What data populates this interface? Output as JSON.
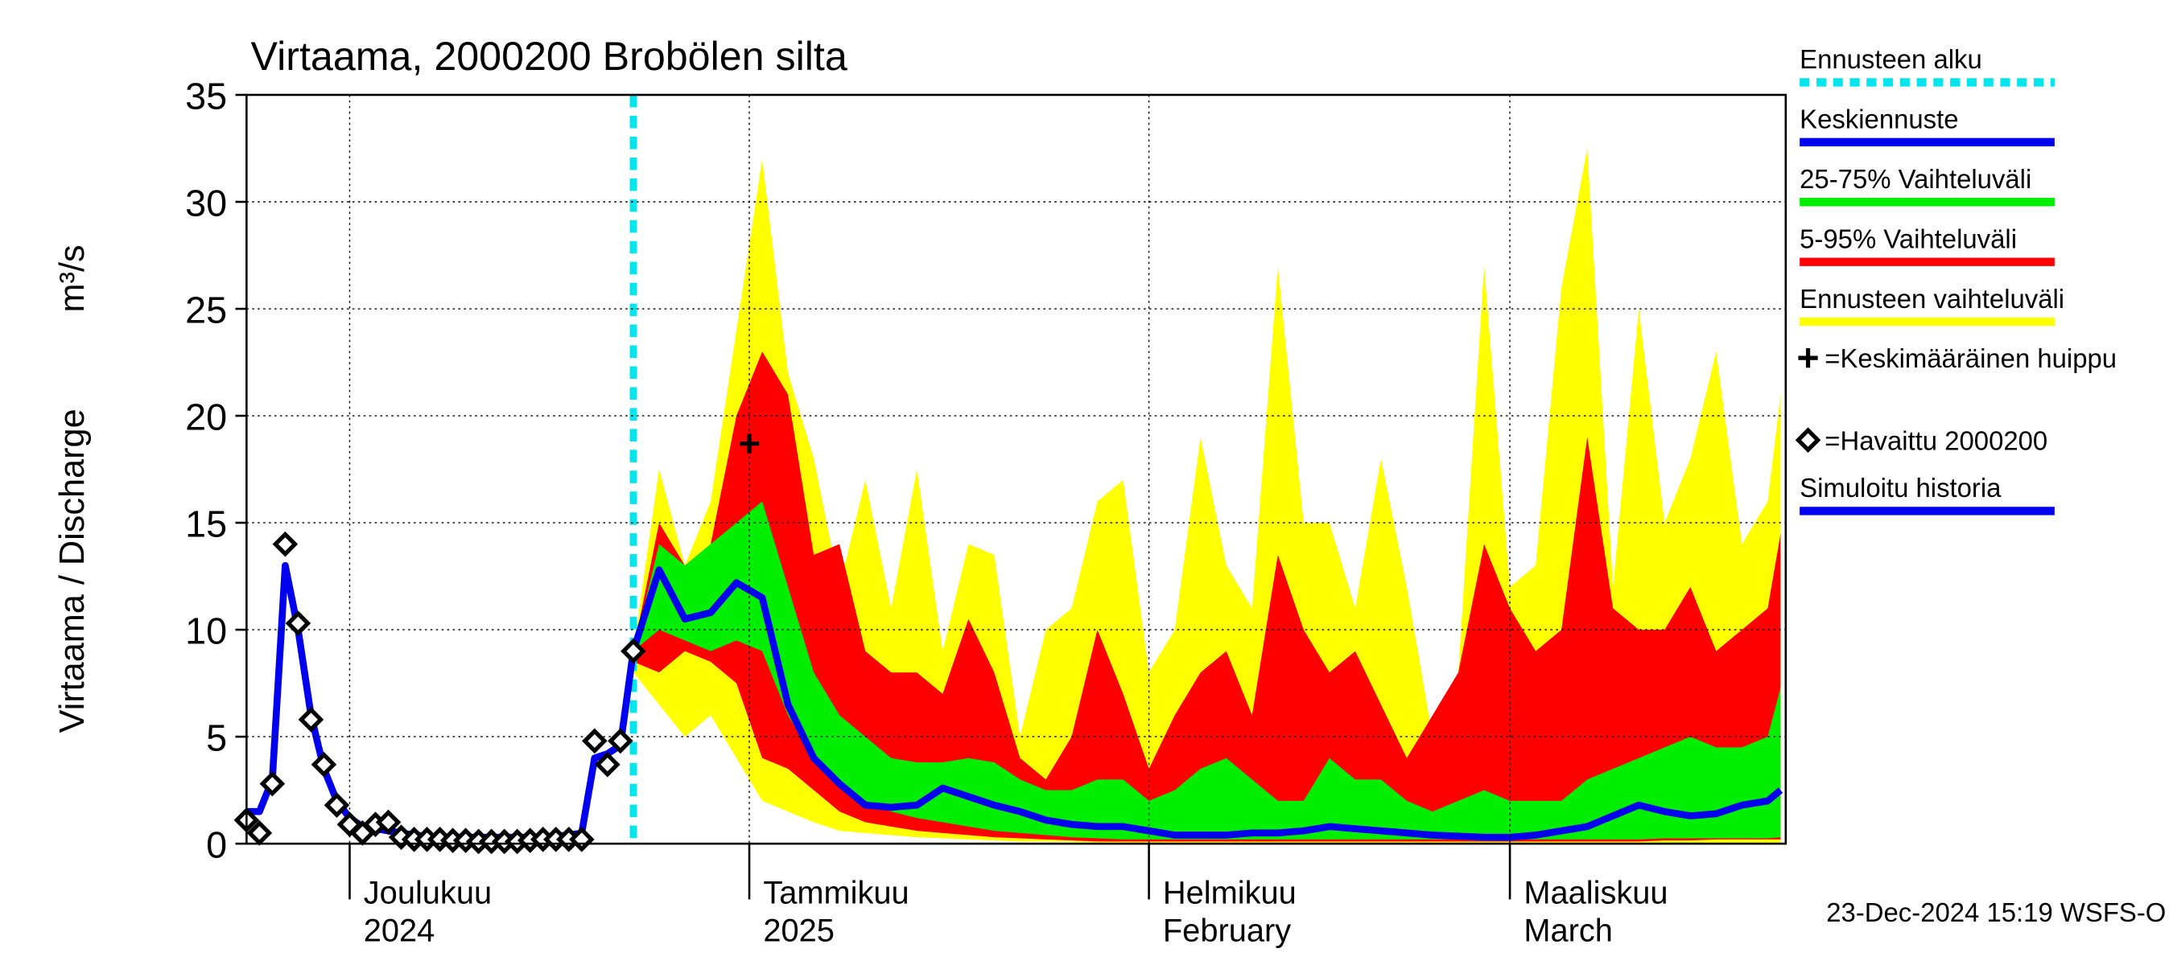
{
  "chart_data": {
    "type": "line",
    "title": "Virtaama, 2000200 Brobölen silta",
    "y_label": "Virtaama / Discharge",
    "y_unit": "m³/s",
    "timestamp": "23-Dec-2024 15:19 WSFS-O",
    "xlim": [
      -8,
      111.4
    ],
    "ylim": [
      0,
      35
    ],
    "yticks": [
      0,
      5,
      10,
      15,
      20,
      25,
      30,
      35
    ],
    "xticks": [
      {
        "value": 0,
        "label": "Joulukuu",
        "label2": "2024"
      },
      {
        "value": 31,
        "label": "Tammikuu",
        "label2": "2025"
      },
      {
        "value": 62,
        "label": "Helmikuu",
        "label2": "February"
      },
      {
        "value": 90,
        "label": "Maaliskuu",
        "label2": "March"
      }
    ],
    "grid": true,
    "forecast_start": {
      "name": "Ennusteen alku",
      "x": 22,
      "color": "#00e5ee"
    },
    "history_x": [
      -8,
      -7,
      -6,
      -5,
      -4,
      -3,
      -2,
      -1,
      0,
      1,
      2,
      3,
      4,
      5,
      6,
      7,
      8,
      9,
      10,
      11,
      12,
      13,
      14,
      15,
      16,
      17,
      18,
      19,
      20,
      21,
      22
    ],
    "forecast_x": [
      22,
      24,
      26,
      28,
      30,
      32,
      34,
      36,
      38,
      40,
      42,
      44,
      46,
      48,
      50,
      52,
      54,
      56,
      58,
      60,
      62,
      64,
      66,
      68,
      70,
      72,
      74,
      76,
      78,
      80,
      82,
      84,
      86,
      88,
      90,
      92,
      94,
      96,
      98,
      100,
      102,
      104,
      106,
      108,
      110,
      111
    ],
    "bands": [
      {
        "name": "Ennusteen vaihteluväli",
        "color": "#ffff00",
        "high": [
          9,
          17.5,
          13,
          16,
          24,
          32,
          22,
          18,
          12,
          17,
          11,
          17.5,
          9,
          14,
          13.5,
          5,
          10,
          11,
          16,
          17,
          8,
          10,
          19,
          13,
          11,
          27,
          15,
          15,
          11,
          18,
          12,
          5,
          8,
          27,
          12,
          13,
          26,
          32.5,
          12,
          25,
          15,
          18,
          23,
          14,
          16,
          21
        ],
        "low": [
          8,
          6.5,
          5,
          6,
          4,
          2,
          1.5,
          1,
          0.6,
          0.5,
          0.4,
          0.3,
          0.25,
          0.2,
          0.15,
          0.1,
          0.1,
          0.08,
          0.05,
          0.05,
          0.05,
          0.05,
          0.05,
          0.05,
          0.05,
          0.05,
          0.05,
          0.05,
          0.05,
          0.05,
          0.05,
          0.05,
          0.05,
          0.05,
          0.05,
          0.05,
          0.05,
          0.05,
          0.05,
          0.05,
          0.05,
          0.05,
          0.05,
          0.05,
          0.05,
          0.05
        ]
      },
      {
        "name": "5-95% Vaihteluväli",
        "color": "#ff0000",
        "high": [
          9,
          15,
          13,
          14,
          20,
          23,
          21,
          13.5,
          14,
          9,
          8,
          8,
          7,
          10.5,
          8,
          4,
          3,
          5,
          10,
          7,
          3.5,
          6,
          8,
          9,
          6,
          13.5,
          10,
          8,
          9,
          6.5,
          4,
          6,
          8,
          14,
          11,
          9,
          10,
          19,
          11,
          10,
          10,
          12,
          9,
          10,
          11,
          14.5
        ],
        "low": [
          8.5,
          8,
          9,
          8.5,
          7.5,
          4,
          3.5,
          2.5,
          1.5,
          1,
          0.8,
          0.6,
          0.5,
          0.4,
          0.3,
          0.25,
          0.2,
          0.15,
          0.1,
          0.1,
          0.1,
          0.1,
          0.1,
          0.1,
          0.1,
          0.1,
          0.1,
          0.1,
          0.1,
          0.1,
          0.1,
          0.1,
          0.1,
          0.1,
          0.1,
          0.1,
          0.1,
          0.1,
          0.1,
          0.1,
          0.15,
          0.15,
          0.2,
          0.2,
          0.2,
          0.2
        ]
      },
      {
        "name": "25-75% Vaihteluväli",
        "color": "#00ee00",
        "high": [
          9,
          14,
          13,
          14,
          15,
          16,
          12,
          8,
          6,
          5,
          4,
          3.8,
          3.8,
          4,
          3.8,
          3,
          2.5,
          2.5,
          3,
          3,
          2,
          2.5,
          3.5,
          4,
          3,
          2,
          2,
          4,
          3,
          3,
          2,
          1.5,
          2,
          2.5,
          2,
          2,
          2,
          3,
          3.5,
          4,
          4.5,
          5,
          4.5,
          4.5,
          5,
          7.3
        ],
        "low": [
          9,
          10,
          9.5,
          9,
          9.5,
          9,
          6,
          4,
          3,
          2,
          1.5,
          1.2,
          1,
          0.8,
          0.6,
          0.5,
          0.4,
          0.3,
          0.25,
          0.2,
          0.2,
          0.2,
          0.2,
          0.2,
          0.2,
          0.2,
          0.2,
          0.2,
          0.2,
          0.2,
          0.2,
          0.2,
          0.2,
          0.2,
          0.2,
          0.2,
          0.2,
          0.2,
          0.2,
          0.2,
          0.25,
          0.25,
          0.25,
          0.25,
          0.25,
          0.3
        ]
      }
    ],
    "series": [
      {
        "name": "Keskiennuste",
        "color": "#0000ee",
        "x": "forecast_x",
        "values": [
          9,
          12.8,
          10.5,
          10.8,
          12.2,
          11.5,
          6.5,
          4,
          2.8,
          1.8,
          1.7,
          1.8,
          2.6,
          2.2,
          1.8,
          1.5,
          1.1,
          0.9,
          0.8,
          0.8,
          0.6,
          0.4,
          0.4,
          0.4,
          0.5,
          0.5,
          0.6,
          0.8,
          0.7,
          0.6,
          0.5,
          0.4,
          0.35,
          0.3,
          0.3,
          0.4,
          0.6,
          0.8,
          1.3,
          1.8,
          1.5,
          1.3,
          1.4,
          1.8,
          2.0,
          2.5
        ]
      },
      {
        "name": "Simuloitu historia",
        "color": "#0000ee",
        "x": "history_x",
        "values": [
          1.5,
          1.5,
          3,
          13,
          10,
          6,
          3.5,
          2,
          1.2,
          0.8,
          0.7,
          0.6,
          0.5,
          0.4,
          0.35,
          0.3,
          0.3,
          0.3,
          0.3,
          0.3,
          0.3,
          0.3,
          0.3,
          0.3,
          0.35,
          0.4,
          0.5,
          4,
          4.2,
          4.6,
          9
        ]
      }
    ],
    "peak": {
      "name": "=Keskimääräinen huippu",
      "x": 31,
      "value": 18.7,
      "color": "#000000"
    },
    "observed": {
      "name": "=Havaittu 2000200",
      "color": "#000000",
      "values": [
        1.1,
        0.5,
        2.8,
        14,
        10.3,
        5.8,
        3.7,
        1.8,
        0.9,
        0.5,
        0.9,
        1.0,
        0.3,
        0.2,
        0.2,
        0.2,
        0.15,
        0.15,
        0.1,
        0.1,
        0.1,
        0.1,
        0.15,
        0.2,
        0.2,
        0.2,
        0.2,
        4.8,
        3.7,
        4.8,
        9
      ]
    }
  }
}
